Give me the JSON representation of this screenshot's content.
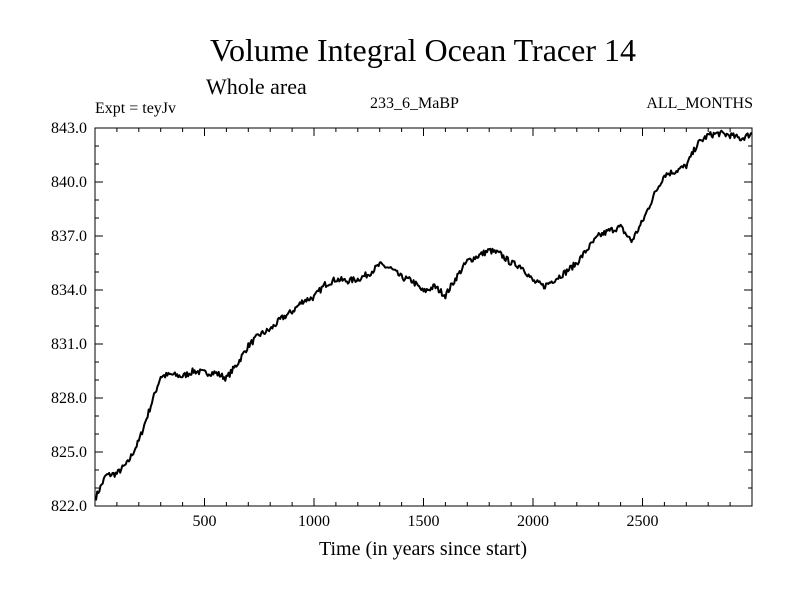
{
  "header": {
    "title": "Volume Integral Ocean Tracer 14",
    "subtitle": "Whole area",
    "expt_label": "Expt = teyJv",
    "run_label": "233_6_MaBP",
    "months_label": "ALL_MONTHS"
  },
  "chart_data": {
    "type": "line",
    "title": "Volume Integral Ocean Tracer 14",
    "subtitle": "Whole area",
    "xlabel": "Time (in years since start)",
    "ylabel": "",
    "xlim": [
      0,
      3000
    ],
    "ylim": [
      822.0,
      843.0
    ],
    "x_ticks": [
      500,
      1000,
      1500,
      2000,
      2500
    ],
    "x_tick_labels": [
      "500",
      "1000",
      "1500",
      "2000",
      "2500"
    ],
    "y_ticks": [
      822.0,
      825.0,
      828.0,
      831.0,
      834.0,
      837.0,
      840.0,
      843.0
    ],
    "y_tick_labels": [
      "822.0",
      "825.0",
      "828.0",
      "831.0",
      "834.0",
      "837.0",
      "840.0",
      "843.0"
    ],
    "grid": false,
    "series": [
      {
        "name": "Tracer 14",
        "color": "#000000",
        "x": [
          0,
          50,
          100,
          150,
          200,
          250,
          300,
          350,
          400,
          450,
          500,
          550,
          600,
          650,
          700,
          750,
          800,
          850,
          900,
          950,
          1000,
          1050,
          1100,
          1150,
          1200,
          1250,
          1300,
          1350,
          1400,
          1450,
          1500,
          1550,
          1600,
          1650,
          1700,
          1750,
          1800,
          1850,
          1900,
          1950,
          2000,
          2050,
          2100,
          2150,
          2200,
          2250,
          2300,
          2350,
          2400,
          2450,
          2500,
          2550,
          2600,
          2650,
          2700,
          2750,
          2800,
          2850,
          2900,
          2950,
          3000
        ],
        "values": [
          822.4,
          823.7,
          823.8,
          824.4,
          825.6,
          827.4,
          829.2,
          829.3,
          829.2,
          829.5,
          829.4,
          829.4,
          829.1,
          829.9,
          830.9,
          831.5,
          831.8,
          832.4,
          832.8,
          833.4,
          833.6,
          834.3,
          834.6,
          834.5,
          834.6,
          834.9,
          835.4,
          835.2,
          834.7,
          834.5,
          833.9,
          834.2,
          833.7,
          834.7,
          835.6,
          835.9,
          836.2,
          836.0,
          835.5,
          835.3,
          834.5,
          834.2,
          834.6,
          835.0,
          835.5,
          836.3,
          837.0,
          837.3,
          837.5,
          836.7,
          837.8,
          839.2,
          840.4,
          840.6,
          840.9,
          842.1,
          842.6,
          842.7,
          842.6,
          842.4,
          842.7
        ]
      }
    ]
  }
}
